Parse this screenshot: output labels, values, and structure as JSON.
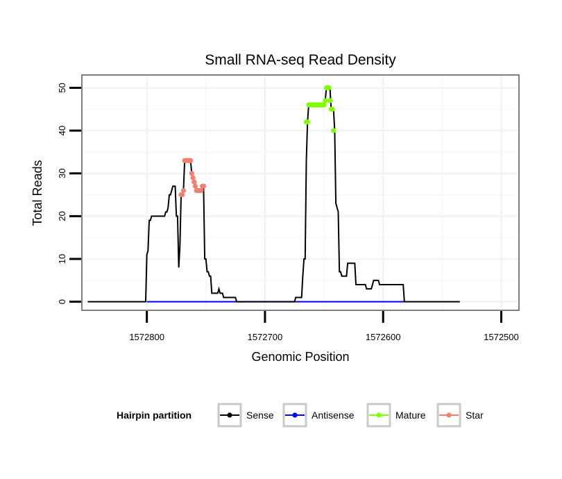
{
  "chart_data": {
    "type": "line",
    "title": "Small RNA-seq Read Density",
    "xlabel": "Genomic Position",
    "ylabel": "Total Reads",
    "xlim": [
      1572855,
      1572485
    ],
    "ylim": [
      -2,
      53
    ],
    "x_reversed": true,
    "xticks": [
      1572800,
      1572700,
      1572600,
      1572500
    ],
    "xtick_labels": [
      "1572800",
      "1572700",
      "1572600",
      "1572500"
    ],
    "yticks": [
      0,
      10,
      20,
      30,
      40,
      50
    ],
    "ytick_labels": [
      "0",
      "10",
      "20",
      "30",
      "40",
      "50"
    ],
    "grid": true,
    "legend": {
      "title": "Hairpin partition",
      "position": "bottom",
      "entries": [
        {
          "name": "Sense",
          "color": "#000000"
        },
        {
          "name": "Antisense",
          "color": "#0000ff"
        },
        {
          "name": "Mature",
          "color": "#7fff00"
        },
        {
          "name": "Star",
          "color": "#f08070"
        }
      ]
    },
    "series": [
      {
        "name": "Sense",
        "color": "#000000",
        "points": [
          [
            1572850,
            0
          ],
          [
            1572801,
            0
          ],
          [
            1572800,
            11
          ],
          [
            1572799,
            12
          ],
          [
            1572798,
            19
          ],
          [
            1572797,
            19
          ],
          [
            1572796,
            20
          ],
          [
            1572785,
            20
          ],
          [
            1572784,
            21
          ],
          [
            1572783,
            21
          ],
          [
            1572782,
            22
          ],
          [
            1572781,
            25
          ],
          [
            1572780,
            25
          ],
          [
            1572779,
            26
          ],
          [
            1572778,
            27
          ],
          [
            1572776,
            27
          ],
          [
            1572775,
            20
          ],
          [
            1572774,
            20
          ],
          [
            1572773,
            8
          ],
          [
            1572772,
            13
          ],
          [
            1572771,
            25
          ],
          [
            1572770,
            25
          ],
          [
            1572769,
            26
          ],
          [
            1572768,
            33
          ],
          [
            1572763,
            33
          ],
          [
            1572762,
            30
          ],
          [
            1572761,
            29
          ],
          [
            1572760,
            28
          ],
          [
            1572759,
            27
          ],
          [
            1572758,
            26
          ],
          [
            1572754,
            26
          ],
          [
            1572753,
            27
          ],
          [
            1572752,
            27
          ],
          [
            1572751,
            10
          ],
          [
            1572750,
            10
          ],
          [
            1572749,
            7
          ],
          [
            1572748,
            7
          ],
          [
            1572747,
            6
          ],
          [
            1572746,
            6
          ],
          [
            1572745,
            2
          ],
          [
            1572740,
            2
          ],
          [
            1572739,
            3
          ],
          [
            1572738,
            2
          ],
          [
            1572736,
            2
          ],
          [
            1572735,
            1
          ],
          [
            1572725,
            1
          ],
          [
            1572724,
            0
          ],
          [
            1572675,
            0
          ],
          [
            1572674,
            1
          ],
          [
            1572669,
            1
          ],
          [
            1572668,
            6
          ],
          [
            1572667,
            10
          ],
          [
            1572666,
            10
          ],
          [
            1572665,
            33
          ],
          [
            1572664,
            42
          ],
          [
            1572663,
            46
          ],
          [
            1572650,
            46
          ],
          [
            1572649,
            47
          ],
          [
            1572648,
            50
          ],
          [
            1572645,
            50
          ],
          [
            1572644,
            45
          ],
          [
            1572642,
            45
          ],
          [
            1572641,
            40
          ],
          [
            1572640,
            23
          ],
          [
            1572638,
            21
          ],
          [
            1572637,
            7
          ],
          [
            1572636,
            7
          ],
          [
            1572635,
            6
          ],
          [
            1572631,
            6
          ],
          [
            1572630,
            9
          ],
          [
            1572624,
            9
          ],
          [
            1572623,
            4
          ],
          [
            1572615,
            4
          ],
          [
            1572614,
            3
          ],
          [
            1572610,
            3
          ],
          [
            1572609,
            4
          ],
          [
            1572608,
            5
          ],
          [
            1572604,
            5
          ],
          [
            1572603,
            4
          ],
          [
            1572583,
            4
          ],
          [
            1572582,
            0
          ],
          [
            1572535,
            0
          ]
        ]
      },
      {
        "name": "Antisense",
        "color": "#0000ff",
        "points": [
          [
            1572800,
            0
          ],
          [
            1572582,
            0
          ]
        ]
      },
      {
        "name": "Mature",
        "color": "#7fff00",
        "points": [
          [
            1572665,
            42
          ],
          [
            1572664,
            42
          ],
          [
            1572663,
            46
          ],
          [
            1572662,
            46
          ],
          [
            1572661,
            46
          ],
          [
            1572660,
            46
          ],
          [
            1572659,
            46
          ],
          [
            1572658,
            46
          ],
          [
            1572657,
            46
          ],
          [
            1572656,
            46
          ],
          [
            1572655,
            46
          ],
          [
            1572654,
            46
          ],
          [
            1572653,
            46
          ],
          [
            1572652,
            46
          ],
          [
            1572651,
            46
          ],
          [
            1572650,
            46
          ],
          [
            1572649,
            47
          ],
          [
            1572648,
            50
          ],
          [
            1572647,
            50
          ],
          [
            1572646,
            50
          ],
          [
            1572645,
            47
          ],
          [
            1572644,
            45
          ],
          [
            1572643,
            45
          ],
          [
            1572642,
            40
          ]
        ]
      },
      {
        "name": "Star",
        "color": "#f08070",
        "points": [
          [
            1572771,
            25
          ],
          [
            1572770,
            25
          ],
          [
            1572769,
            26
          ],
          [
            1572768,
            33
          ],
          [
            1572767,
            33
          ],
          [
            1572766,
            33
          ],
          [
            1572765,
            33
          ],
          [
            1572764,
            33
          ],
          [
            1572763,
            33
          ],
          [
            1572762,
            30
          ],
          [
            1572761,
            29
          ],
          [
            1572760,
            28
          ],
          [
            1572759,
            27
          ],
          [
            1572758,
            26
          ],
          [
            1572757,
            26
          ],
          [
            1572756,
            26
          ],
          [
            1572755,
            26
          ],
          [
            1572754,
            26
          ],
          [
            1572753,
            27
          ],
          [
            1572752,
            27
          ]
        ]
      }
    ]
  }
}
